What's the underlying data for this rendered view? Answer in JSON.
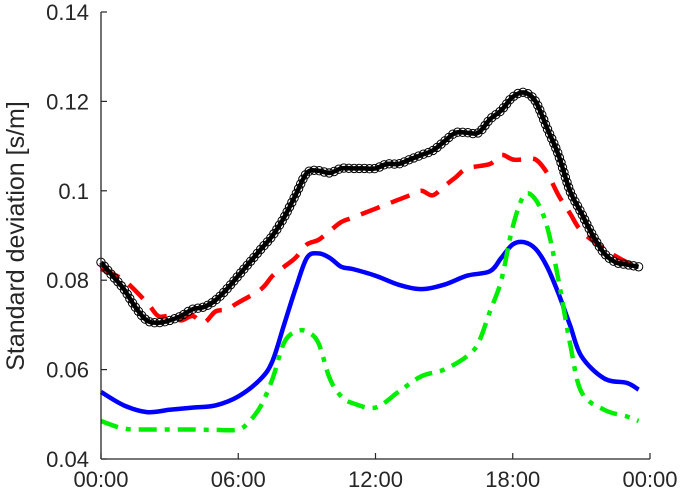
{
  "chart_data": {
    "type": "line",
    "title": "",
    "xlabel": "",
    "ylabel": "Standard deviation [s/m]",
    "x_ticks": [
      "00:00",
      "06:00",
      "12:00",
      "18:00",
      "00:00"
    ],
    "y_ticks": [
      "0.04",
      "0.06",
      "0.08",
      "0.1",
      "0.12",
      "0.14"
    ],
    "xlim_hours": [
      0,
      24
    ],
    "ylim": [
      0.04,
      0.14
    ],
    "grid": false,
    "legend": "none",
    "series": [
      {
        "color": "#000000",
        "style": "solid-with-circle-markers",
        "x": [
          0,
          0.5,
          1,
          1.5,
          2,
          2.5,
          3,
          3.5,
          4,
          4.5,
          5,
          5.5,
          6,
          6.5,
          7,
          7.5,
          8,
          8.5,
          9,
          9.5,
          10,
          10.5,
          11,
          11.5,
          12,
          12.5,
          13,
          13.5,
          14,
          14.5,
          15,
          15.5,
          16,
          16.5,
          17,
          17.5,
          18,
          18.5,
          19,
          19.5,
          20,
          20.5,
          21,
          21.5,
          22,
          22.5,
          23,
          23.5
        ],
        "y": [
          0.084,
          0.081,
          0.078,
          0.074,
          0.071,
          0.0705,
          0.071,
          0.072,
          0.0735,
          0.074,
          0.0755,
          0.078,
          0.081,
          0.084,
          0.087,
          0.09,
          0.094,
          0.099,
          0.104,
          0.1045,
          0.104,
          0.105,
          0.105,
          0.105,
          0.105,
          0.106,
          0.106,
          0.107,
          0.108,
          0.109,
          0.111,
          0.113,
          0.113,
          0.113,
          0.116,
          0.118,
          0.121,
          0.122,
          0.12,
          0.114,
          0.108,
          0.1,
          0.095,
          0.09,
          0.086,
          0.084,
          0.0835,
          0.083
        ]
      },
      {
        "color": "#ff0000",
        "style": "dashed",
        "x": [
          0,
          1,
          2,
          2.5,
          3,
          3.5,
          4,
          4.5,
          5,
          5.5,
          6,
          7,
          7.5,
          8,
          8.5,
          9,
          9.5,
          10,
          10.5,
          11,
          12,
          12.5,
          13,
          13.5,
          14,
          14.5,
          15,
          15.5,
          16,
          17,
          17.5,
          18,
          18.5,
          19,
          19.5,
          20,
          20.5,
          21,
          22,
          23,
          23.5
        ],
        "y": [
          0.0825,
          0.08,
          0.075,
          0.072,
          0.072,
          0.071,
          0.072,
          0.0705,
          0.073,
          0.0735,
          0.075,
          0.078,
          0.081,
          0.083,
          0.085,
          0.088,
          0.089,
          0.091,
          0.093,
          0.094,
          0.096,
          0.097,
          0.098,
          0.099,
          0.1,
          0.099,
          0.101,
          0.103,
          0.105,
          0.106,
          0.108,
          0.107,
          0.107,
          0.107,
          0.104,
          0.099,
          0.095,
          0.091,
          0.087,
          0.084,
          0.0835
        ]
      },
      {
        "color": "#0000ff",
        "style": "solid",
        "x": [
          0,
          1,
          2,
          3,
          4,
          5,
          6,
          7,
          7.5,
          8,
          8.5,
          9,
          9.5,
          10,
          10.5,
          11,
          12,
          13,
          14,
          15,
          16,
          17,
          17.5,
          18,
          18.5,
          19,
          19.5,
          20,
          20.5,
          21,
          22,
          23,
          23.5
        ],
        "y": [
          0.055,
          0.052,
          0.0505,
          0.051,
          0.0515,
          0.052,
          0.054,
          0.058,
          0.062,
          0.07,
          0.078,
          0.085,
          0.086,
          0.085,
          0.083,
          0.0825,
          0.081,
          0.079,
          0.078,
          0.079,
          0.081,
          0.082,
          0.085,
          0.088,
          0.0885,
          0.087,
          0.083,
          0.077,
          0.07,
          0.063,
          0.058,
          0.057,
          0.0555
        ]
      },
      {
        "color": "#00ee00",
        "style": "dash-dot",
        "x": [
          0,
          1,
          2,
          3,
          4,
          5,
          6,
          6.5,
          7,
          7.5,
          8,
          8.5,
          9,
          9.5,
          10,
          10.5,
          11,
          12,
          13,
          14,
          15,
          16,
          16.5,
          17,
          17.5,
          18,
          18.5,
          19,
          19.5,
          20,
          20.5,
          21,
          22,
          23,
          23.5
        ],
        "y": [
          0.0485,
          0.0468,
          0.0466,
          0.0466,
          0.0466,
          0.0465,
          0.0466,
          0.0485,
          0.052,
          0.058,
          0.066,
          0.0685,
          0.0685,
          0.066,
          0.058,
          0.054,
          0.0525,
          0.0515,
          0.055,
          0.0585,
          0.06,
          0.063,
          0.066,
          0.073,
          0.08,
          0.092,
          0.099,
          0.098,
          0.092,
          0.08,
          0.066,
          0.055,
          0.051,
          0.0495,
          0.0485
        ]
      }
    ]
  }
}
